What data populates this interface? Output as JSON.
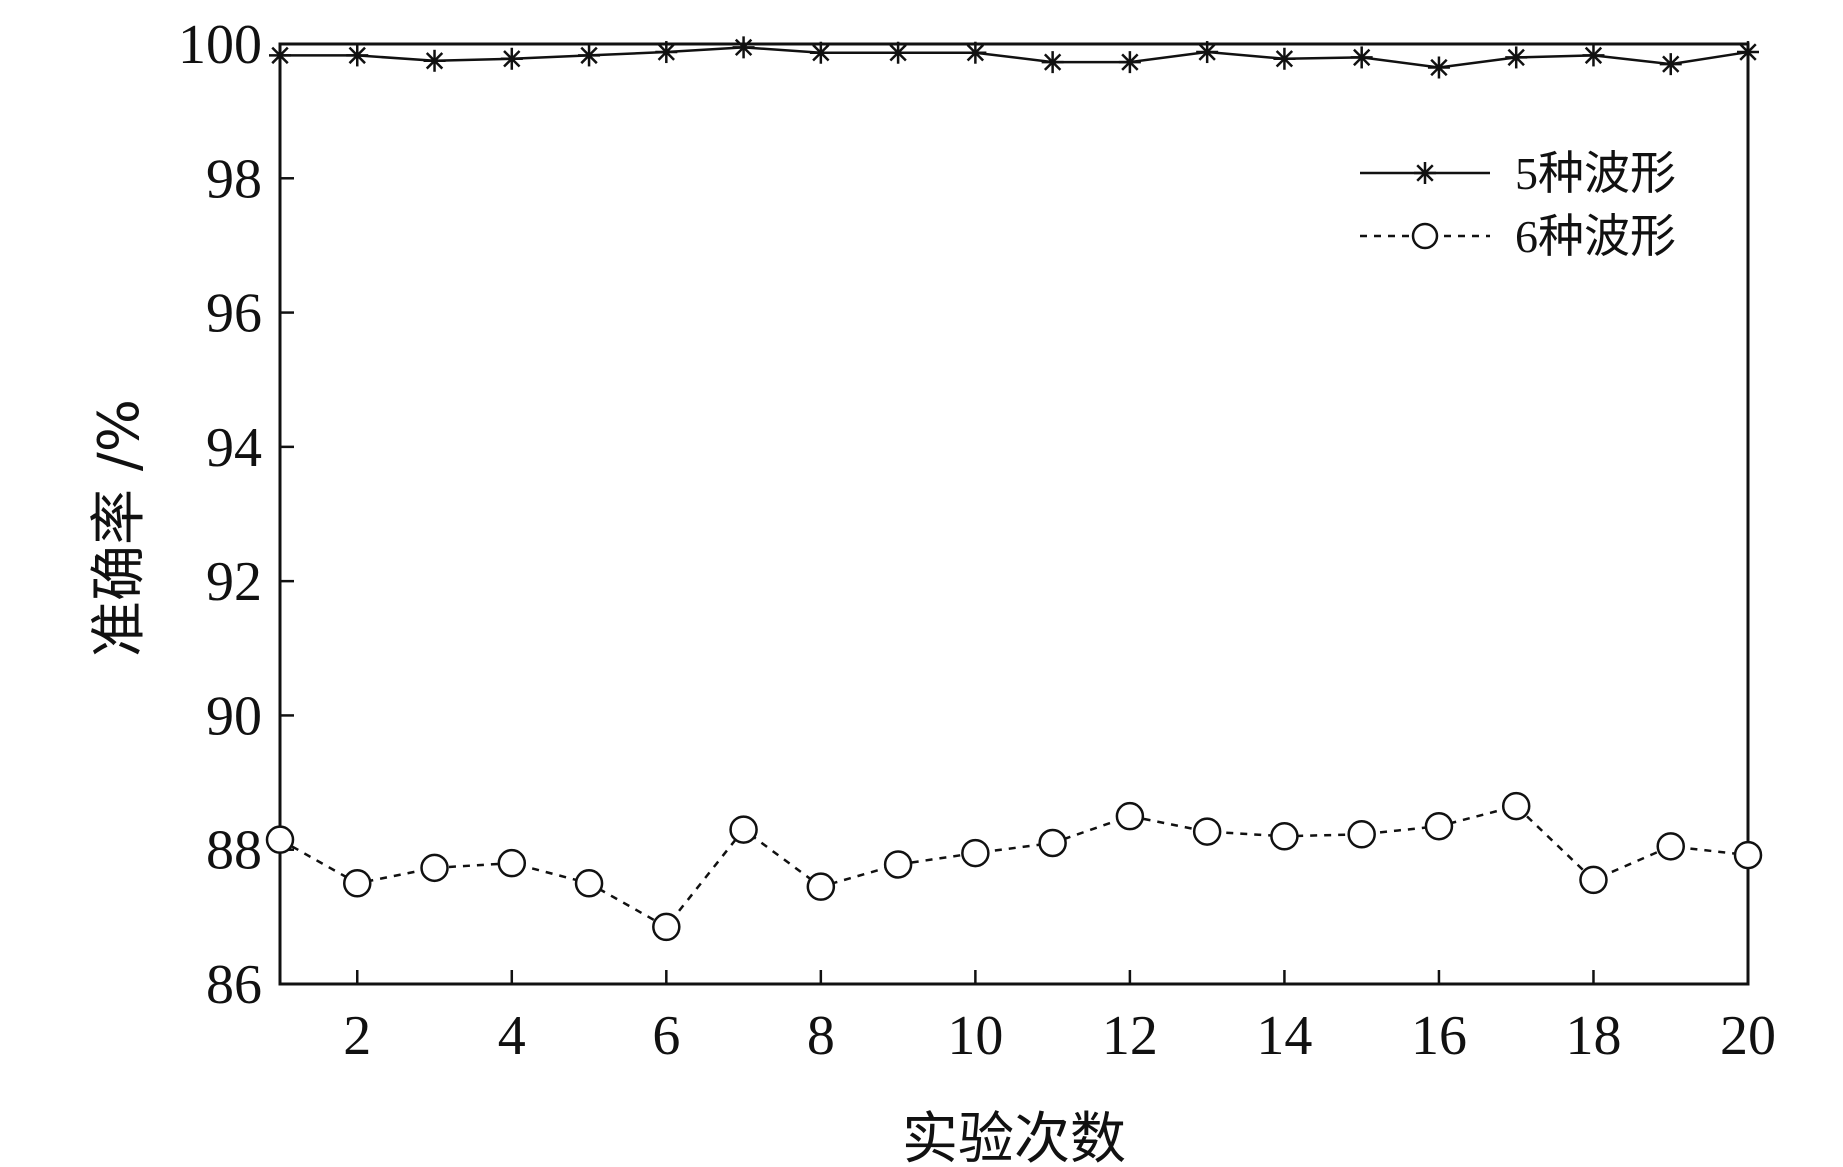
{
  "chart_data": {
    "type": "line",
    "xlabel": "实验次数",
    "ylabel": "准确率 /%",
    "xlim": [
      1,
      20
    ],
    "ylim": [
      86,
      100
    ],
    "x": [
      1,
      2,
      3,
      4,
      5,
      6,
      7,
      8,
      9,
      10,
      11,
      12,
      13,
      14,
      15,
      16,
      17,
      18,
      19,
      20
    ],
    "xticks": [
      2,
      4,
      6,
      8,
      10,
      12,
      14,
      16,
      18,
      20
    ],
    "yticks": [
      86,
      88,
      90,
      92,
      94,
      96,
      98,
      100
    ],
    "legend_position": "top-right",
    "grid": false,
    "series": [
      {
        "name": "5种波形",
        "line_style": "solid",
        "marker": "asterisk",
        "color": "#111111",
        "values": [
          99.83,
          99.83,
          99.75,
          99.78,
          99.83,
          99.88,
          99.95,
          99.87,
          99.87,
          99.87,
          99.73,
          99.73,
          99.88,
          99.78,
          99.8,
          99.65,
          99.8,
          99.83,
          99.7,
          99.88
        ]
      },
      {
        "name": "6种波形",
        "line_style": "dashed",
        "marker": "circle",
        "color": "#111111",
        "values": [
          88.15,
          87.5,
          87.73,
          87.8,
          87.5,
          86.85,
          88.3,
          87.45,
          87.78,
          87.95,
          88.1,
          88.5,
          88.27,
          88.2,
          88.23,
          88.35,
          88.65,
          87.55,
          88.05,
          87.92
        ]
      }
    ]
  }
}
